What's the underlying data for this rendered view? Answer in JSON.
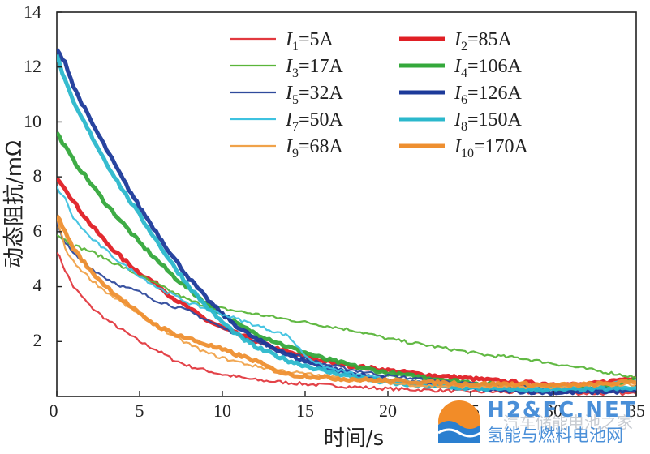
{
  "chart_data": {
    "type": "line",
    "xlabel": "时间/s",
    "ylabel": "动态阻抗/mΩ",
    "xlim": [
      0,
      35
    ],
    "ylim": [
      0,
      14
    ],
    "xticks": [
      "0",
      "5",
      "10",
      "15",
      "20",
      "25",
      "30",
      "35"
    ],
    "yticks": [
      "2",
      "4",
      "6",
      "8",
      "10",
      "12",
      "14"
    ],
    "grid": false,
    "legend_position": "top-right",
    "series": [
      {
        "name_var": "I",
        "name_sub": "1",
        "name_val": "=5A",
        "color": "#e2393f",
        "width": 2.2,
        "points": [
          [
            0,
            5.3
          ],
          [
            0.5,
            4.6
          ],
          [
            1,
            4.0
          ],
          [
            2,
            3.3
          ],
          [
            3,
            2.8
          ],
          [
            4,
            2.4
          ],
          [
            5,
            2.0
          ],
          [
            6,
            1.7
          ],
          [
            7,
            1.35
          ],
          [
            8,
            1.1
          ],
          [
            9,
            0.95
          ],
          [
            10,
            0.8
          ],
          [
            12,
            0.6
          ],
          [
            15,
            0.45
          ],
          [
            18,
            0.35
          ],
          [
            20,
            0.28
          ],
          [
            25,
            0.18
          ],
          [
            30,
            0.12
          ],
          [
            35,
            0.1
          ]
        ]
      },
      {
        "name_var": "I",
        "name_sub": "2",
        "name_val": "=85A",
        "color": "#e01f25",
        "width": 5,
        "points": [
          [
            0,
            8.0
          ],
          [
            0.5,
            7.6
          ],
          [
            1,
            7.1
          ],
          [
            2,
            6.3
          ],
          [
            3,
            5.6
          ],
          [
            4,
            5.0
          ],
          [
            5,
            4.5
          ],
          [
            6,
            4.1
          ],
          [
            7,
            3.6
          ],
          [
            8,
            3.2
          ],
          [
            9,
            2.8
          ],
          [
            10,
            2.5
          ],
          [
            12,
            2.0
          ],
          [
            14,
            1.6
          ],
          [
            16,
            1.3
          ],
          [
            18,
            1.1
          ],
          [
            20,
            0.95
          ],
          [
            22,
            0.8
          ],
          [
            25,
            0.65
          ],
          [
            28,
            0.5
          ],
          [
            30,
            0.45
          ],
          [
            32,
            0.42
          ],
          [
            35,
            0.7
          ]
        ]
      },
      {
        "name_var": "I",
        "name_sub": "3",
        "name_val": "=17A",
        "color": "#5ab53a",
        "width": 2.2,
        "points": [
          [
            0,
            5.9
          ],
          [
            1,
            5.5
          ],
          [
            2,
            5.3
          ],
          [
            3,
            5.0
          ],
          [
            4,
            4.7
          ],
          [
            5,
            4.4
          ],
          [
            6,
            4.1
          ],
          [
            7,
            3.8
          ],
          [
            8,
            3.5
          ],
          [
            9,
            3.3
          ],
          [
            10,
            3.2
          ],
          [
            12,
            3.0
          ],
          [
            14,
            2.8
          ],
          [
            16,
            2.6
          ],
          [
            18,
            2.4
          ],
          [
            20,
            2.1
          ],
          [
            22,
            1.9
          ],
          [
            24,
            1.7
          ],
          [
            26,
            1.5
          ],
          [
            28,
            1.4
          ],
          [
            30,
            1.2
          ],
          [
            32,
            1.0
          ],
          [
            34,
            0.8
          ],
          [
            35,
            0.7
          ]
        ]
      },
      {
        "name_var": "I",
        "name_sub": "4",
        "name_val": "=106A",
        "color": "#34a83b",
        "width": 5,
        "points": [
          [
            0,
            9.6
          ],
          [
            0.5,
            9.1
          ],
          [
            1,
            8.6
          ],
          [
            2,
            7.8
          ],
          [
            3,
            7.0
          ],
          [
            4,
            6.3
          ],
          [
            5,
            5.6
          ],
          [
            6,
            5.0
          ],
          [
            7,
            4.4
          ],
          [
            8,
            3.9
          ],
          [
            9,
            3.4
          ],
          [
            10,
            3.0
          ],
          [
            11,
            2.6
          ],
          [
            12,
            2.3
          ],
          [
            14,
            1.8
          ],
          [
            16,
            1.4
          ],
          [
            18,
            1.1
          ],
          [
            20,
            0.85
          ],
          [
            22,
            0.7
          ],
          [
            25,
            0.5
          ],
          [
            28,
            0.35
          ],
          [
            30,
            0.3
          ],
          [
            33,
            0.3
          ],
          [
            35,
            0.6
          ]
        ]
      },
      {
        "name_var": "I",
        "name_sub": "5",
        "name_val": "=32A",
        "color": "#2f4a9c",
        "width": 2.2,
        "points": [
          [
            0,
            6.3
          ],
          [
            0.5,
            5.6
          ],
          [
            1,
            5.2
          ],
          [
            2,
            4.7
          ],
          [
            3,
            4.3
          ],
          [
            4,
            4.0
          ],
          [
            5,
            3.8
          ],
          [
            6,
            3.5
          ],
          [
            7,
            3.3
          ],
          [
            8,
            3.1
          ],
          [
            9,
            2.8
          ],
          [
            10,
            2.5
          ],
          [
            12,
            2.0
          ],
          [
            14,
            1.6
          ],
          [
            16,
            1.2
          ],
          [
            18,
            0.95
          ],
          [
            20,
            0.75
          ],
          [
            25,
            0.45
          ],
          [
            30,
            0.3
          ],
          [
            35,
            0.25
          ]
        ]
      },
      {
        "name_var": "I",
        "name_sub": "6",
        "name_val": "=126A",
        "color": "#1c3a9a",
        "width": 5,
        "points": [
          [
            0,
            12.6
          ],
          [
            0.5,
            12.2
          ],
          [
            1,
            11.3
          ],
          [
            2,
            10.1
          ],
          [
            3,
            9.0
          ],
          [
            4,
            7.9
          ],
          [
            5,
            6.9
          ],
          [
            6,
            6.0
          ],
          [
            7,
            5.1
          ],
          [
            8,
            4.3
          ],
          [
            9,
            3.6
          ],
          [
            10,
            3.0
          ],
          [
            11,
            2.5
          ],
          [
            12,
            2.1
          ],
          [
            14,
            1.5
          ],
          [
            16,
            1.1
          ],
          [
            18,
            0.8
          ],
          [
            20,
            0.6
          ],
          [
            22,
            0.45
          ],
          [
            25,
            0.3
          ],
          [
            28,
            0.2
          ],
          [
            30,
            0.15
          ],
          [
            35,
            0.2
          ]
        ]
      },
      {
        "name_var": "I",
        "name_sub": "7",
        "name_val": "=50A",
        "color": "#3ec2e0",
        "width": 2.2,
        "points": [
          [
            0,
            7.6
          ],
          [
            0.5,
            7.2
          ],
          [
            1,
            6.5
          ],
          [
            2,
            5.8
          ],
          [
            3,
            5.3
          ],
          [
            4,
            4.8
          ],
          [
            5,
            4.4
          ],
          [
            6,
            4.0
          ],
          [
            7,
            3.7
          ],
          [
            8,
            3.4
          ],
          [
            9,
            3.2
          ],
          [
            10,
            3.0
          ],
          [
            11,
            2.8
          ],
          [
            12,
            2.6
          ],
          [
            13,
            2.4
          ],
          [
            14,
            2.2
          ],
          [
            15,
            1.5
          ],
          [
            16,
            1.1
          ],
          [
            18,
            0.8
          ],
          [
            20,
            0.6
          ],
          [
            22,
            0.5
          ],
          [
            25,
            0.4
          ],
          [
            28,
            0.35
          ],
          [
            30,
            0.3
          ],
          [
            32,
            0.4
          ],
          [
            35,
            0.6
          ]
        ]
      },
      {
        "name_var": "I",
        "name_sub": "8",
        "name_val": "=150A",
        "color": "#2bb8cc",
        "width": 5,
        "points": [
          [
            0,
            12.4
          ],
          [
            0.5,
            11.5
          ],
          [
            1,
            10.7
          ],
          [
            2,
            9.6
          ],
          [
            3,
            8.5
          ],
          [
            4,
            7.5
          ],
          [
            5,
            6.6
          ],
          [
            6,
            5.7
          ],
          [
            7,
            4.8
          ],
          [
            8,
            4.0
          ],
          [
            9,
            3.3
          ],
          [
            10,
            2.7
          ],
          [
            11,
            2.2
          ],
          [
            12,
            1.8
          ],
          [
            14,
            1.3
          ],
          [
            16,
            0.95
          ],
          [
            18,
            0.7
          ],
          [
            20,
            0.5
          ],
          [
            22,
            0.4
          ],
          [
            25,
            0.3
          ],
          [
            28,
            0.25
          ],
          [
            30,
            0.25
          ],
          [
            35,
            0.3
          ]
        ]
      },
      {
        "name_var": "I",
        "name_sub": "9",
        "name_val": "=68A",
        "color": "#f0a24a",
        "width": 2.2,
        "points": [
          [
            0,
            6.5
          ],
          [
            0.5,
            5.4
          ],
          [
            1,
            4.9
          ],
          [
            2,
            4.3
          ],
          [
            3,
            3.8
          ],
          [
            4,
            3.4
          ],
          [
            5,
            3.0
          ],
          [
            6,
            2.6
          ],
          [
            7,
            2.2
          ],
          [
            8,
            1.9
          ],
          [
            9,
            1.6
          ],
          [
            10,
            1.4
          ],
          [
            12,
            1.1
          ],
          [
            14,
            0.9
          ],
          [
            16,
            0.75
          ],
          [
            18,
            0.6
          ],
          [
            20,
            0.5
          ],
          [
            22,
            0.4
          ],
          [
            25,
            0.35
          ],
          [
            28,
            0.35
          ],
          [
            30,
            0.35
          ],
          [
            35,
            0.45
          ]
        ]
      },
      {
        "name_var": "I",
        "name_sub": "10",
        "name_val": "=170A",
        "color": "#ee8f30",
        "width": 5,
        "points": [
          [
            0,
            6.6
          ],
          [
            0.5,
            6.0
          ],
          [
            1,
            5.4
          ],
          [
            2,
            4.6
          ],
          [
            3,
            4.0
          ],
          [
            4,
            3.5
          ],
          [
            5,
            3.0
          ],
          [
            6,
            2.6
          ],
          [
            7,
            2.3
          ],
          [
            8,
            2.1
          ],
          [
            9,
            1.9
          ],
          [
            10,
            1.7
          ],
          [
            11,
            1.5
          ],
          [
            12,
            1.3
          ],
          [
            13,
            1.0
          ],
          [
            14,
            0.8
          ],
          [
            15,
            0.75
          ],
          [
            17,
            0.65
          ],
          [
            19,
            0.6
          ],
          [
            21,
            0.55
          ],
          [
            23,
            0.5
          ],
          [
            25,
            0.45
          ],
          [
            28,
            0.45
          ],
          [
            30,
            0.4
          ],
          [
            33,
            0.45
          ],
          [
            35,
            0.55
          ]
        ]
      }
    ]
  },
  "watermark": {
    "logo_text": "H2&FC.NET",
    "tagline": "氢能与燃料电池网",
    "faint_text": "汽车储能电池之家",
    "colors": {
      "logo": "#4a8fd8",
      "sun": "#f28c28",
      "wave": "#2a7fd0"
    }
  }
}
